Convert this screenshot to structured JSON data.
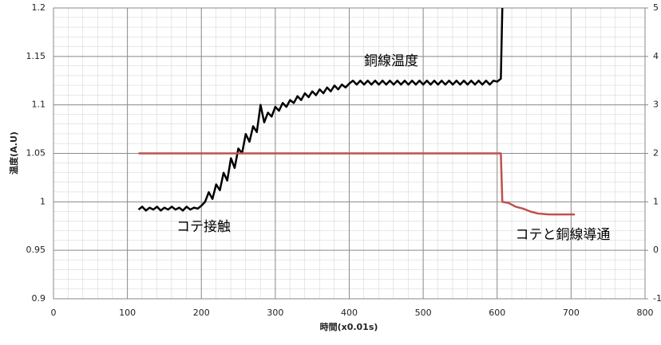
{
  "chart_data": {
    "type": "line",
    "xlabel": "時間(x0.01s)",
    "ylabel": "温度(A.U)",
    "annotations": [
      "銅線温度",
      "コテ接触",
      "コテと銅線導通"
    ],
    "xlim": [
      0,
      800
    ],
    "xticks": [
      0,
      100,
      200,
      300,
      400,
      500,
      600,
      700,
      800
    ],
    "ylim": [
      0.9,
      1.2
    ],
    "yticks": [
      0.9,
      0.95,
      1,
      1.05,
      1.1,
      1.15,
      1.2
    ],
    "y2lim": [
      -1,
      5
    ],
    "y2ticks": [
      -1,
      0,
      1,
      2,
      3,
      4,
      5
    ],
    "grid": true,
    "series": [
      {
        "color": "#000000",
        "x": [
          115,
          120,
          125,
          130,
          135,
          140,
          145,
          150,
          155,
          160,
          165,
          170,
          175,
          180,
          185,
          190,
          195,
          200,
          205,
          210,
          215,
          220,
          225,
          230,
          235,
          240,
          245,
          250,
          255,
          260,
          265,
          270,
          275,
          280,
          285,
          290,
          295,
          300,
          305,
          310,
          315,
          320,
          325,
          330,
          335,
          340,
          345,
          350,
          355,
          360,
          365,
          370,
          375,
          380,
          385,
          390,
          395,
          400,
          405,
          410,
          415,
          420,
          425,
          430,
          435,
          440,
          445,
          450,
          455,
          460,
          465,
          470,
          475,
          480,
          485,
          490,
          495,
          500,
          505,
          510,
          515,
          520,
          525,
          530,
          535,
          540,
          545,
          550,
          555,
          560,
          565,
          570,
          575,
          580,
          585,
          590,
          595,
          600,
          605,
          607
        ],
        "values": [
          0.992,
          0.995,
          0.991,
          0.994,
          0.992,
          0.995,
          0.991,
          0.994,
          0.992,
          0.995,
          0.992,
          0.994,
          0.991,
          0.995,
          0.992,
          0.994,
          0.993,
          0.996,
          1.0,
          1.01,
          1.003,
          1.018,
          1.012,
          1.03,
          1.022,
          1.045,
          1.035,
          1.055,
          1.05,
          1.07,
          1.062,
          1.078,
          1.072,
          1.1,
          1.082,
          1.092,
          1.088,
          1.098,
          1.094,
          1.102,
          1.098,
          1.105,
          1.102,
          1.109,
          1.105,
          1.112,
          1.108,
          1.114,
          1.11,
          1.116,
          1.112,
          1.118,
          1.114,
          1.12,
          1.116,
          1.121,
          1.118,
          1.122,
          1.125,
          1.121,
          1.125,
          1.121,
          1.125,
          1.121,
          1.125,
          1.121,
          1.125,
          1.121,
          1.125,
          1.121,
          1.125,
          1.121,
          1.125,
          1.121,
          1.125,
          1.121,
          1.125,
          1.121,
          1.125,
          1.121,
          1.125,
          1.121,
          1.125,
          1.121,
          1.125,
          1.121,
          1.125,
          1.121,
          1.125,
          1.121,
          1.125,
          1.121,
          1.125,
          1.121,
          1.125,
          1.121,
          1.125,
          1.124,
          1.127,
          1.2
        ]
      },
      {
        "color": "#c0504d",
        "axis": "y2",
        "x": [
          115,
          605,
          607,
          615,
          625,
          635,
          645,
          655,
          670,
          705
        ],
        "values": [
          2,
          2,
          1.0,
          0.98,
          0.9,
          0.86,
          0.8,
          0.76,
          0.74,
          0.74
        ]
      }
    ]
  }
}
